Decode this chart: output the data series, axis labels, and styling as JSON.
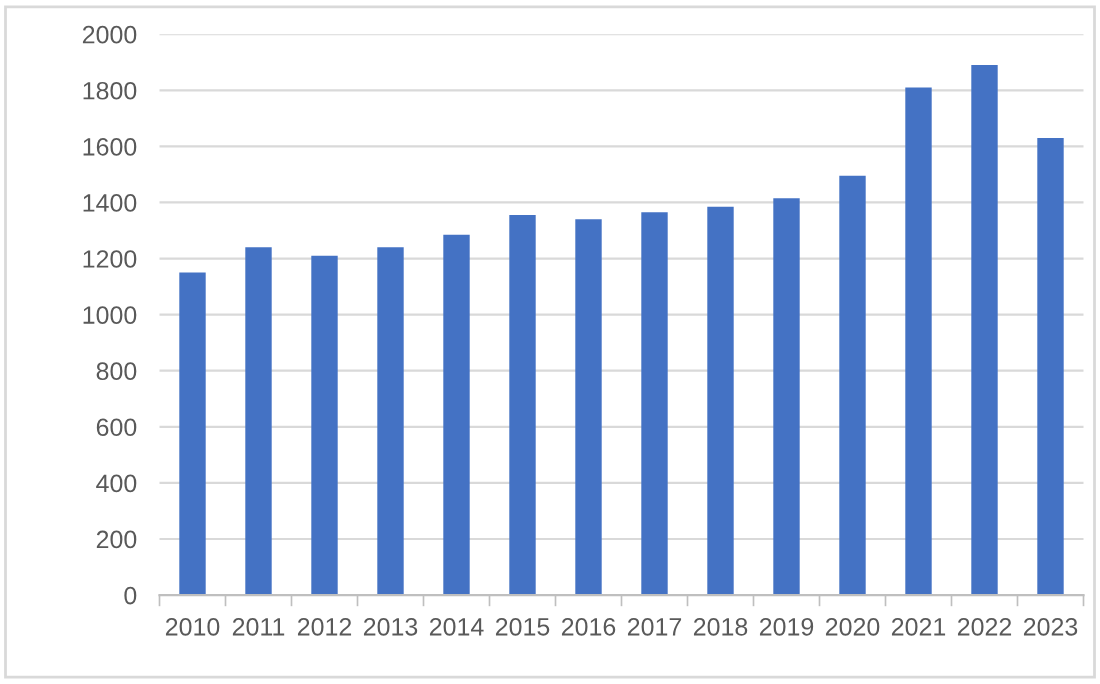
{
  "chart_data": {
    "type": "bar",
    "categories": [
      "2010",
      "2011",
      "2012",
      "2013",
      "2014",
      "2015",
      "2016",
      "2017",
      "2018",
      "2019",
      "2020",
      "2021",
      "2022",
      "2023"
    ],
    "values": [
      1150,
      1240,
      1210,
      1240,
      1285,
      1355,
      1340,
      1365,
      1385,
      1415,
      1495,
      1810,
      1890,
      1630
    ],
    "color": "#4472c4",
    "ylim": [
      0,
      2000
    ],
    "yticks": [
      0,
      200,
      400,
      600,
      800,
      1000,
      1200,
      1400,
      1600,
      1800,
      2000
    ],
    "grid": "y"
  }
}
